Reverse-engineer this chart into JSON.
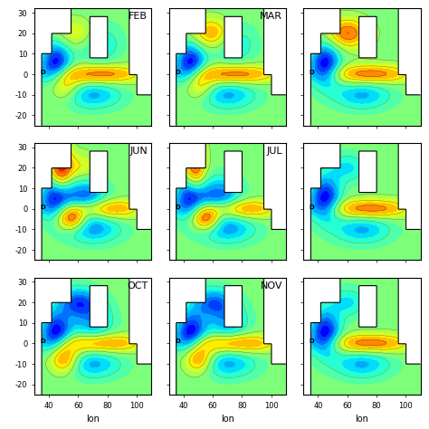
{
  "months": [
    "FEB",
    "MAR",
    "",
    "JUN",
    "JUL",
    "",
    "OCT",
    "NOV",
    ""
  ],
  "lon_min": 30,
  "lon_max": 110,
  "lat_min": -25,
  "lat_max": 32,
  "xticks": [
    40,
    60,
    80,
    100
  ],
  "yticks": [
    -20,
    -10,
    0,
    10,
    20,
    30
  ],
  "xlabel": "lon",
  "cmap": "jet",
  "vmin": -0.5,
  "vmax": 0.5,
  "nrows": 3,
  "ncols": 3,
  "figsize": [
    4.74,
    4.74
  ],
  "dpi": 100,
  "title_fontsize": 8,
  "tick_fontsize": 6,
  "label_fontsize": 7,
  "contour_levels": 20
}
